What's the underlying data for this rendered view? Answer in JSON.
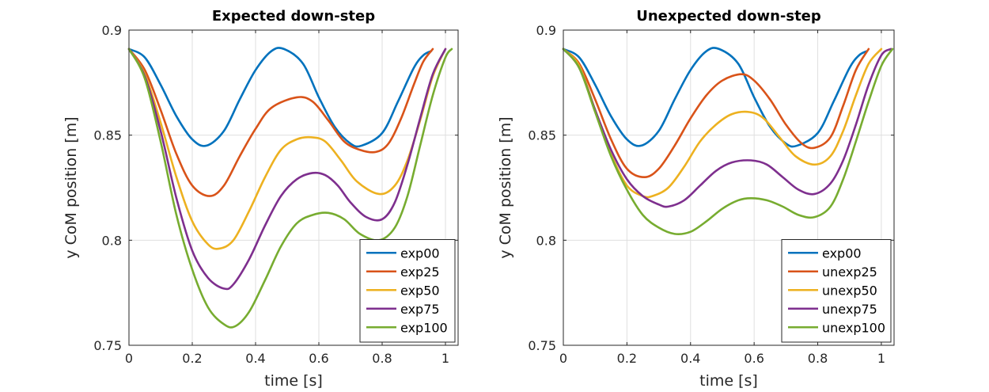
{
  "chart_data": [
    {
      "type": "line",
      "title": "Expected down-step",
      "xlabel": "time [s]",
      "ylabel": "y CoM position [m]",
      "xlim": [
        0,
        1.04
      ],
      "ylim": [
        0.75,
        0.9
      ],
      "xticks": [
        "0",
        "0.2",
        "0.4",
        "0.6",
        "0.8",
        "1"
      ],
      "yticks": [
        "0.75",
        "0.8",
        "0.85",
        "0.9"
      ],
      "grid": true,
      "legend": "bottom-right",
      "series": [
        {
          "name": "exp00",
          "color": "#0072BD",
          "x": [
            0,
            0.05,
            0.1,
            0.15,
            0.2,
            0.245,
            0.3,
            0.35,
            0.4,
            0.45,
            0.49,
            0.55,
            0.6,
            0.65,
            0.7,
            0.735,
            0.8,
            0.85,
            0.9,
            0.93,
            0.955
          ],
          "y": [
            0.891,
            0.887,
            0.874,
            0.859,
            0.848,
            0.845,
            0.852,
            0.867,
            0.881,
            0.89,
            0.891,
            0.884,
            0.868,
            0.854,
            0.846,
            0.845,
            0.851,
            0.866,
            0.882,
            0.888,
            0.89
          ]
        },
        {
          "name": "exp25",
          "color": "#D95319",
          "x": [
            0,
            0.05,
            0.1,
            0.15,
            0.2,
            0.255,
            0.3,
            0.35,
            0.4,
            0.45,
            0.53,
            0.58,
            0.63,
            0.68,
            0.73,
            0.78,
            0.82,
            0.86,
            0.9,
            0.93,
            0.96
          ],
          "y": [
            0.891,
            0.881,
            0.862,
            0.841,
            0.826,
            0.821,
            0.826,
            0.84,
            0.853,
            0.863,
            0.868,
            0.866,
            0.857,
            0.847,
            0.843,
            0.842,
            0.846,
            0.858,
            0.874,
            0.885,
            0.891
          ]
        },
        {
          "name": "exp50",
          "color": "#EDB120",
          "x": [
            0,
            0.05,
            0.1,
            0.15,
            0.2,
            0.25,
            0.285,
            0.33,
            0.38,
            0.43,
            0.48,
            0.53,
            0.575,
            0.62,
            0.67,
            0.72,
            0.79,
            0.84,
            0.88,
            0.92,
            0.96,
            1.0
          ],
          "y": [
            0.891,
            0.879,
            0.856,
            0.83,
            0.809,
            0.798,
            0.796,
            0.8,
            0.814,
            0.83,
            0.843,
            0.848,
            0.849,
            0.847,
            0.838,
            0.828,
            0.822,
            0.826,
            0.838,
            0.857,
            0.878,
            0.891
          ]
        },
        {
          "name": "exp75",
          "color": "#7E2F8E",
          "x": [
            0,
            0.05,
            0.1,
            0.15,
            0.2,
            0.25,
            0.3,
            0.33,
            0.38,
            0.43,
            0.48,
            0.53,
            0.58,
            0.62,
            0.66,
            0.7,
            0.75,
            0.8,
            0.84,
            0.88,
            0.92,
            0.96,
            1.0
          ],
          "y": [
            0.891,
            0.878,
            0.852,
            0.82,
            0.795,
            0.782,
            0.777,
            0.779,
            0.791,
            0.807,
            0.821,
            0.829,
            0.832,
            0.831,
            0.826,
            0.818,
            0.811,
            0.81,
            0.818,
            0.836,
            0.858,
            0.879,
            0.891
          ]
        },
        {
          "name": "exp100",
          "color": "#77AC30",
          "x": [
            0,
            0.05,
            0.1,
            0.15,
            0.2,
            0.25,
            0.3,
            0.335,
            0.38,
            0.43,
            0.48,
            0.53,
            0.58,
            0.63,
            0.68,
            0.73,
            0.79,
            0.84,
            0.88,
            0.92,
            0.96,
            1.0,
            1.02
          ],
          "y": [
            0.891,
            0.877,
            0.847,
            0.812,
            0.786,
            0.768,
            0.76,
            0.759,
            0.766,
            0.781,
            0.797,
            0.808,
            0.812,
            0.813,
            0.81,
            0.803,
            0.8,
            0.806,
            0.821,
            0.845,
            0.869,
            0.887,
            0.891
          ]
        }
      ]
    },
    {
      "type": "line",
      "title": "Unexpected down-step",
      "xlabel": "time [s]",
      "ylabel": "y CoM position [m]",
      "xlim": [
        0,
        1.04
      ],
      "ylim": [
        0.75,
        0.9
      ],
      "xticks": [
        "0",
        "0.2",
        "0.4",
        "0.6",
        "0.8",
        "1"
      ],
      "yticks": [
        "0.75",
        "0.8",
        "0.85",
        "0.9"
      ],
      "grid": true,
      "legend": "bottom-right",
      "series": [
        {
          "name": "exp00",
          "color": "#0072BD",
          "x": [
            0,
            0.05,
            0.1,
            0.15,
            0.2,
            0.245,
            0.3,
            0.35,
            0.4,
            0.45,
            0.49,
            0.55,
            0.6,
            0.65,
            0.7,
            0.735,
            0.8,
            0.85,
            0.9,
            0.93,
            0.955
          ],
          "y": [
            0.891,
            0.887,
            0.874,
            0.859,
            0.848,
            0.845,
            0.852,
            0.867,
            0.881,
            0.89,
            0.891,
            0.884,
            0.868,
            0.854,
            0.846,
            0.845,
            0.851,
            0.866,
            0.882,
            0.888,
            0.89
          ]
        },
        {
          "name": "unexp25",
          "color": "#D95319",
          "x": [
            0,
            0.05,
            0.1,
            0.15,
            0.2,
            0.255,
            0.3,
            0.35,
            0.4,
            0.45,
            0.5,
            0.56,
            0.6,
            0.65,
            0.7,
            0.75,
            0.79,
            0.84,
            0.88,
            0.92,
            0.96
          ],
          "y": [
            0.891,
            0.884,
            0.867,
            0.848,
            0.834,
            0.83,
            0.834,
            0.845,
            0.858,
            0.869,
            0.876,
            0.879,
            0.876,
            0.867,
            0.855,
            0.846,
            0.844,
            0.849,
            0.864,
            0.881,
            0.891
          ]
        },
        {
          "name": "unexp50",
          "color": "#EDB120",
          "x": [
            0,
            0.05,
            0.1,
            0.15,
            0.2,
            0.25,
            0.28,
            0.33,
            0.38,
            0.43,
            0.48,
            0.53,
            0.585,
            0.63,
            0.68,
            0.73,
            0.79,
            0.84,
            0.88,
            0.92,
            0.96,
            1.0
          ],
          "y": [
            0.891,
            0.883,
            0.862,
            0.841,
            0.826,
            0.821,
            0.821,
            0.825,
            0.835,
            0.847,
            0.855,
            0.86,
            0.861,
            0.858,
            0.849,
            0.84,
            0.836,
            0.84,
            0.852,
            0.869,
            0.884,
            0.891
          ]
        },
        {
          "name": "unexp75",
          "color": "#7E2F8E",
          "x": [
            0,
            0.05,
            0.1,
            0.15,
            0.2,
            0.25,
            0.3,
            0.33,
            0.38,
            0.43,
            0.48,
            0.53,
            0.59,
            0.64,
            0.69,
            0.74,
            0.79,
            0.84,
            0.88,
            0.92,
            0.96,
            1.0,
            1.03
          ],
          "y": [
            0.891,
            0.882,
            0.862,
            0.843,
            0.829,
            0.821,
            0.817,
            0.816,
            0.819,
            0.826,
            0.833,
            0.837,
            0.838,
            0.836,
            0.83,
            0.824,
            0.822,
            0.827,
            0.838,
            0.855,
            0.874,
            0.888,
            0.891
          ]
        },
        {
          "name": "unexp100",
          "color": "#77AC30",
          "x": [
            0,
            0.05,
            0.1,
            0.15,
            0.2,
            0.25,
            0.3,
            0.35,
            0.4,
            0.45,
            0.5,
            0.55,
            0.59,
            0.64,
            0.69,
            0.74,
            0.79,
            0.84,
            0.88,
            0.92,
            0.96,
            1.0,
            1.035
          ],
          "y": [
            0.891,
            0.882,
            0.861,
            0.84,
            0.824,
            0.812,
            0.806,
            0.803,
            0.804,
            0.809,
            0.815,
            0.819,
            0.82,
            0.819,
            0.816,
            0.812,
            0.811,
            0.816,
            0.829,
            0.847,
            0.866,
            0.883,
            0.891
          ]
        }
      ]
    }
  ]
}
